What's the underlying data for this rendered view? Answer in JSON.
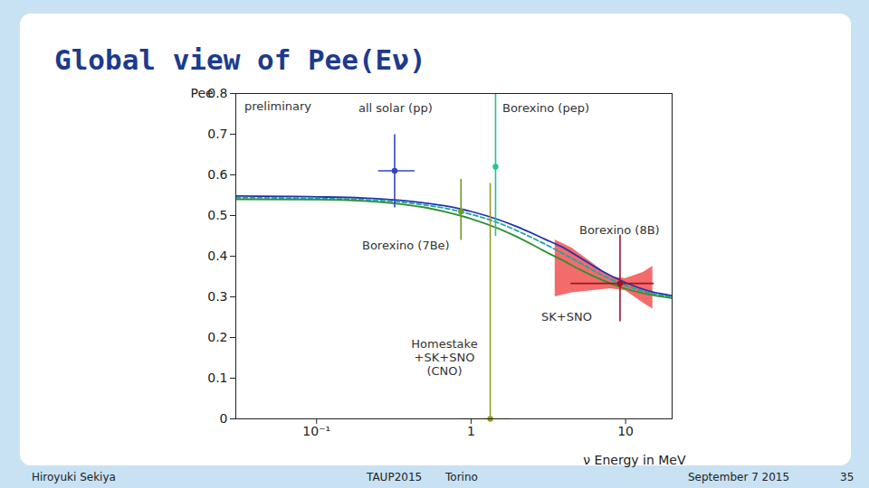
{
  "chart_data": {
    "type": "scatter",
    "title": "Global view of Pee(Eν)",
    "x_label": "ν Energy in MeV",
    "y_label": "Pee",
    "log": "x",
    "grid": false,
    "xlim": [
      0.03,
      20
    ],
    "ylim": [
      0,
      0.8
    ],
    "xticks": [
      {
        "value": 0.1,
        "label": "10⁻¹"
      },
      1,
      10
    ],
    "yticks": [
      0,
      0.1,
      0.2,
      0.3,
      0.4,
      0.5,
      0.6,
      0.7,
      0.8
    ],
    "annotations": [
      "preliminary",
      "Borexino (8B)"
    ],
    "curves": {
      "x": [
        0.03,
        0.1,
        0.2,
        0.3,
        0.5,
        0.7,
        1,
        1.5,
        2,
        3,
        4,
        5,
        7,
        10,
        15,
        20
      ],
      "series": [
        {
          "color": "#2233b0",
          "line_style": "solid",
          "values": [
            0.548,
            0.546,
            0.543,
            0.539,
            0.531,
            0.523,
            0.51,
            0.49,
            0.472,
            0.442,
            0.42,
            0.398,
            0.364,
            0.335,
            0.312,
            0.303
          ]
        },
        {
          "color": "#1aa6a6",
          "line_style": "dashed",
          "values": [
            0.544,
            0.542,
            0.539,
            0.535,
            0.526,
            0.517,
            0.503,
            0.482,
            0.462,
            0.43,
            0.405,
            0.385,
            0.354,
            0.328,
            0.308,
            0.3
          ]
        },
        {
          "color": "#2f9030",
          "line_style": "solid",
          "values": [
            0.54,
            0.539,
            0.536,
            0.531,
            0.52,
            0.508,
            0.492,
            0.468,
            0.447,
            0.412,
            0.388,
            0.368,
            0.342,
            0.32,
            0.304,
            0.297
          ]
        }
      ]
    },
    "band": {
      "color": "#f03a3a",
      "x": [
        3.5,
        4.5,
        6,
        8,
        10,
        13,
        15
      ],
      "upper": [
        0.44,
        0.42,
        0.385,
        0.35,
        0.345,
        0.36,
        0.375
      ],
      "lower": [
        0.3,
        0.31,
        0.315,
        0.32,
        0.315,
        0.285,
        0.27
      ]
    },
    "points": [
      {
        "label": "all solar (pp)",
        "color": "#3344c4",
        "x": 0.32,
        "y": 0.61,
        "x_low": 0.25,
        "x_high": 0.43,
        "y_low": 0.52,
        "y_high": 0.7
      },
      {
        "label": "Borexino (7Be)",
        "color": "#6a9a2a",
        "x": 0.86,
        "y": 0.51,
        "x_low": null,
        "x_high": null,
        "y_low": 0.44,
        "y_high": 0.59
      },
      {
        "label": "Borexino (pep)",
        "color": "#22c492",
        "x": 1.44,
        "y": 0.62,
        "x_low": null,
        "x_high": null,
        "y_low": 0.45,
        "y_high": 0.8
      },
      {
        "label": "Homestake\n+SK+SNO\n(CNO)",
        "color": "#9a9a22",
        "x": 1.33,
        "y": 0,
        "x_low": 0.86,
        "x_high": 1.8,
        "y_low": 0,
        "y_high": 0.58
      },
      {
        "label": "SK+SNO",
        "color": "#a01424",
        "x": 9.2,
        "y": 0.333,
        "x_low": 4.4,
        "x_high": 15.2,
        "y_low": 0.24,
        "y_high": 0.453
      }
    ],
    "footer": [
      "Hiroyuki Sekiya",
      "TAUP2015",
      "Torino",
      "September 7 2015",
      "35"
    ]
  }
}
